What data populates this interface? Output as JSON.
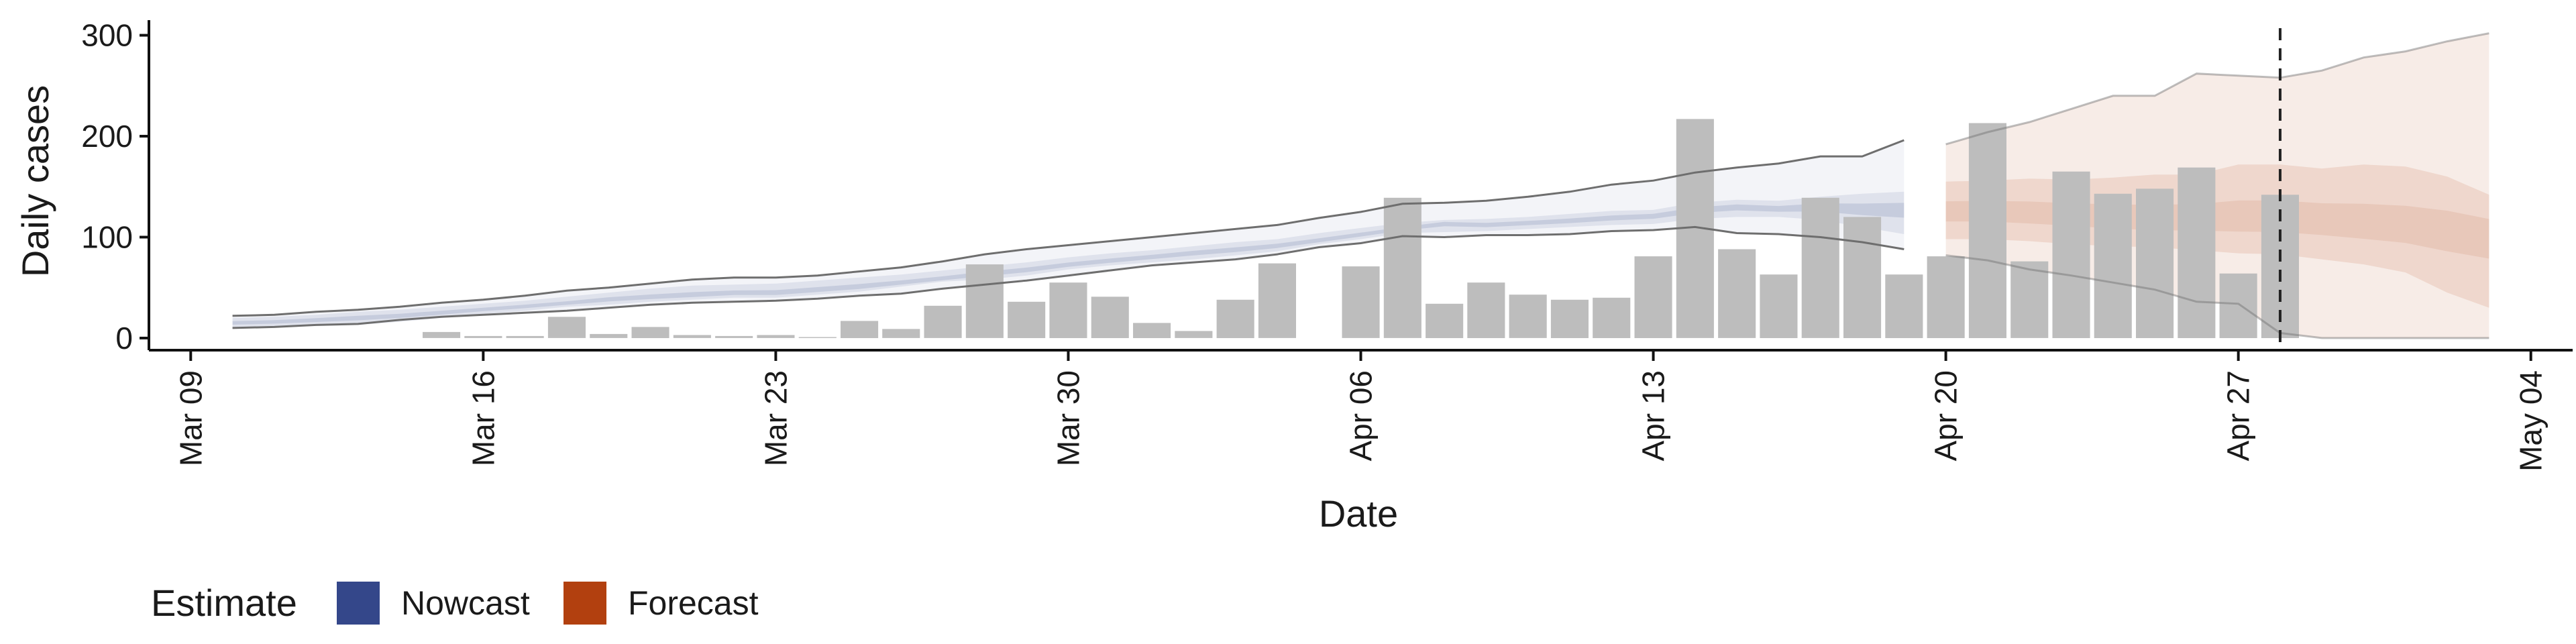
{
  "chart_data": {
    "type": "bar",
    "xlabel": "Date",
    "ylabel": "Daily cases",
    "xlim": [
      "2020-03-08",
      "2020-05-05"
    ],
    "ylim": [
      -12,
      315
    ],
    "x_ticks": [
      {
        "date": "2020-03-09",
        "label": "Mar 09"
      },
      {
        "date": "2020-03-16",
        "label": "Mar 16"
      },
      {
        "date": "2020-03-23",
        "label": "Mar 23"
      },
      {
        "date": "2020-03-30",
        "label": "Mar 30"
      },
      {
        "date": "2020-04-06",
        "label": "Apr 06"
      },
      {
        "date": "2020-04-13",
        "label": "Apr 13"
      },
      {
        "date": "2020-04-20",
        "label": "Apr 20"
      },
      {
        "date": "2020-04-27",
        "label": "Apr 27"
      },
      {
        "date": "2020-05-04",
        "label": "May 04"
      }
    ],
    "y_ticks": [
      0,
      100,
      200,
      300
    ],
    "grid": false,
    "legend": {
      "title": "Estimate",
      "position": "bottom-left"
    },
    "vline_date": "2020-04-28",
    "colors": {
      "bars": "#bdbdbd",
      "nowcast": "#34478a",
      "forecast": "#b2400f",
      "ci_line": "#6e6e6e"
    },
    "cases": {
      "dates": [
        "2020-03-15",
        "2020-03-16",
        "2020-03-17",
        "2020-03-18",
        "2020-03-19",
        "2020-03-20",
        "2020-03-21",
        "2020-03-22",
        "2020-03-23",
        "2020-03-24",
        "2020-03-25",
        "2020-03-26",
        "2020-03-27",
        "2020-03-28",
        "2020-03-29",
        "2020-03-30",
        "2020-03-31",
        "2020-04-01",
        "2020-04-02",
        "2020-04-03",
        "2020-04-04",
        "2020-04-06",
        "2020-04-07",
        "2020-04-08",
        "2020-04-09",
        "2020-04-10",
        "2020-04-11",
        "2020-04-12",
        "2020-04-13",
        "2020-04-14",
        "2020-04-15",
        "2020-04-16",
        "2020-04-17",
        "2020-04-18",
        "2020-04-19",
        "2020-04-20",
        "2020-04-21",
        "2020-04-22",
        "2020-04-23",
        "2020-04-24",
        "2020-04-25",
        "2020-04-26",
        "2020-04-27",
        "2020-04-28"
      ],
      "values": [
        6,
        2,
        2,
        21,
        4,
        11,
        3,
        2,
        3,
        1,
        17,
        9,
        32,
        73,
        36,
        55,
        41,
        15,
        7,
        38,
        74,
        71,
        139,
        34,
        55,
        43,
        38,
        40,
        81,
        217,
        88,
        63,
        139,
        120,
        63,
        81,
        213,
        76,
        165,
        143,
        148,
        169,
        64,
        142
      ]
    },
    "series": [
      {
        "name": "Nowcast",
        "dates": [
          "2020-03-10",
          "2020-03-11",
          "2020-03-12",
          "2020-03-13",
          "2020-03-14",
          "2020-03-15",
          "2020-03-16",
          "2020-03-17",
          "2020-03-18",
          "2020-03-19",
          "2020-03-20",
          "2020-03-21",
          "2020-03-22",
          "2020-03-23",
          "2020-03-24",
          "2020-03-25",
          "2020-03-26",
          "2020-03-27",
          "2020-03-28",
          "2020-03-29",
          "2020-03-30",
          "2020-03-31",
          "2020-04-01",
          "2020-04-02",
          "2020-04-03",
          "2020-04-04",
          "2020-04-05",
          "2020-04-06",
          "2020-04-07",
          "2020-04-08",
          "2020-04-09",
          "2020-04-10",
          "2020-04-11",
          "2020-04-12",
          "2020-04-13",
          "2020-04-14",
          "2020-04-15",
          "2020-04-16",
          "2020-04-17",
          "2020-04-18",
          "2020-04-19"
        ],
        "median": [
          15,
          16,
          18,
          20,
          22,
          25,
          28,
          31,
          34,
          38,
          40,
          42,
          44,
          44,
          47,
          50,
          54,
          58,
          63,
          67,
          72,
          76,
          80,
          84,
          87,
          91,
          96,
          102,
          108,
          114,
          112,
          114,
          116,
          119,
          121,
          127,
          130,
          128,
          130,
          128,
          128
        ],
        "lower_90": [
          10,
          11,
          12,
          13,
          16,
          20,
          24,
          27,
          31,
          33,
          36,
          38,
          40,
          40,
          43,
          46,
          51,
          56,
          58,
          62,
          68,
          72,
          75,
          78,
          82,
          86,
          93,
          98,
          104,
          105,
          106,
          108,
          110,
          112,
          113,
          118,
          120,
          120,
          117,
          110,
          103
        ],
        "upper_90": [
          20,
          21,
          23,
          26,
          28,
          31,
          34,
          37,
          41,
          45,
          49,
          52,
          53,
          54,
          57,
          60,
          63,
          67,
          71,
          75,
          80,
          84,
          87,
          91,
          95,
          98,
          104,
          109,
          114,
          117,
          118,
          120,
          123,
          126,
          127,
          134,
          137,
          136,
          140,
          143,
          145
        ],
        "lower_ci": [
          10,
          11,
          13,
          14,
          18,
          21,
          23,
          25,
          27,
          30,
          33,
          35,
          36,
          37,
          39,
          42,
          44,
          49,
          53,
          57,
          62,
          67,
          72,
          75,
          78,
          83,
          90,
          94,
          101,
          100,
          102,
          102,
          103,
          106,
          107,
          110,
          104,
          103,
          100,
          95,
          88
        ],
        "upper_ci": [
          22,
          23,
          26,
          28,
          31,
          35,
          38,
          42,
          47,
          50,
          54,
          58,
          60,
          60,
          62,
          66,
          70,
          76,
          83,
          88,
          92,
          96,
          100,
          104,
          108,
          112,
          119,
          125,
          133,
          134,
          136,
          140,
          145,
          152,
          156,
          164,
          169,
          173,
          180,
          180,
          196
        ]
      },
      {
        "name": "Forecast",
        "dates": [
          "2020-04-20",
          "2020-04-21",
          "2020-04-22",
          "2020-04-23",
          "2020-04-24",
          "2020-04-25",
          "2020-04-26",
          "2020-04-27",
          "2020-04-28",
          "2020-04-29",
          "2020-04-30",
          "2020-05-01",
          "2020-05-02",
          "2020-05-03"
        ],
        "median": [
          125,
          125,
          123,
          121,
          118,
          116,
          117,
          117,
          117,
          115,
          112,
          110,
          108,
          105
        ],
        "lower_90": [
          98,
          98,
          96,
          93,
          91,
          90,
          87,
          84,
          83,
          78,
          73,
          65,
          45,
          30
        ],
        "upper_90": [
          155,
          156,
          158,
          157,
          159,
          162,
          162,
          172,
          172,
          168,
          172,
          170,
          160,
          142
        ],
        "lower_ci": [
          82,
          77,
          68,
          62,
          55,
          48,
          36,
          34,
          5,
          0,
          0,
          0,
          0,
          0
        ],
        "upper_ci": [
          192,
          204,
          214,
          227,
          240,
          240,
          262,
          260,
          258,
          265,
          278,
          284,
          294,
          302
        ]
      }
    ]
  }
}
